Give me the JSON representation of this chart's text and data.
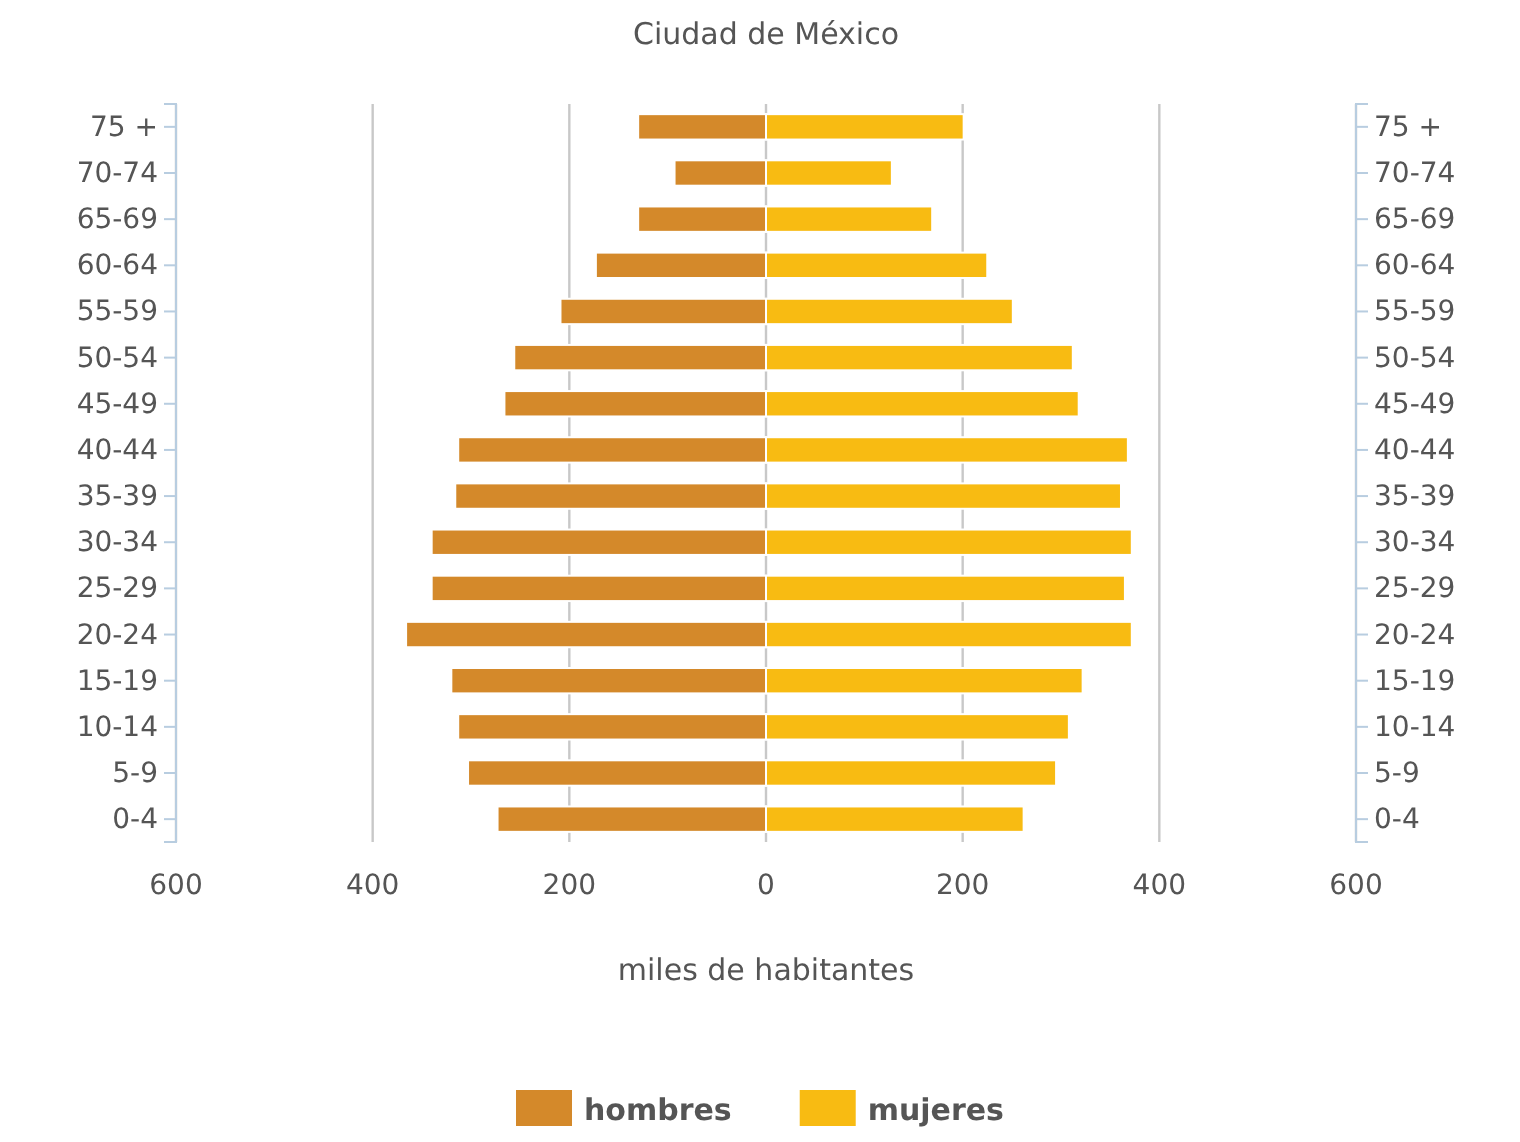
{
  "chart_data": {
    "type": "bar",
    "orientation": "horizontal",
    "title": "Ciudad de México",
    "xlabel": "miles de habitantes",
    "categories": [
      "75 +",
      "70-74",
      "65-69",
      "60-64",
      "55-59",
      "50-54",
      "45-49",
      "40-44",
      "35-39",
      "30-34",
      "25-29",
      "20-24",
      "15-19",
      "10-14",
      "5-9",
      "0-4"
    ],
    "series": [
      {
        "name": "hombres",
        "color": "#d4892a",
        "values": [
          -130,
          -93,
          -130,
          -173,
          -209,
          -256,
          -266,
          -313,
          -316,
          -340,
          -340,
          -366,
          -320,
          -313,
          -303,
          -273
        ]
      },
      {
        "name": "mujeres",
        "color": "#f8bb12",
        "values": [
          201,
          128,
          169,
          225,
          251,
          312,
          318,
          368,
          361,
          372,
          365,
          372,
          322,
          308,
          295,
          262
        ]
      }
    ],
    "xlim": [
      -600,
      600
    ],
    "xticks": [
      {
        "value": -600,
        "label": "600"
      },
      {
        "value": -400,
        "label": "400"
      },
      {
        "value": -200,
        "label": "200"
      },
      0,
      200,
      400,
      600
    ],
    "grid": "x",
    "legend": "bottom",
    "stacked": true
  }
}
